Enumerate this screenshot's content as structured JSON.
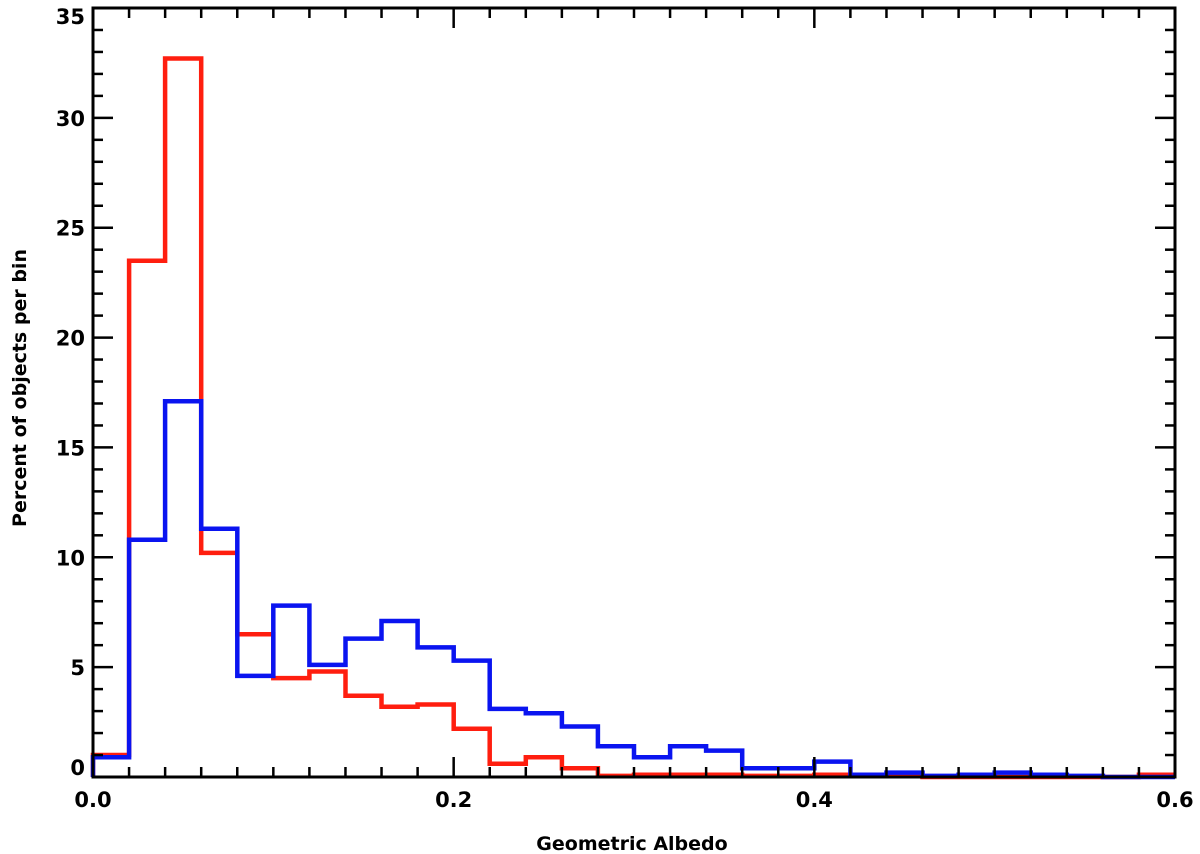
{
  "chart_data": {
    "type": "line",
    "subtype": "step-histogram",
    "xlabel": "Geometric Albedo",
    "ylabel": "Percent of objects per bin",
    "xlim": [
      0.0,
      0.6
    ],
    "ylim": [
      0,
      35
    ],
    "x_ticks": [
      "0.0",
      "0.2",
      "0.4",
      "0.6"
    ],
    "y_ticks": [
      "0",
      "5",
      "10",
      "15",
      "20",
      "25",
      "30",
      "35"
    ],
    "grid": false,
    "bin_edges": [
      0.0,
      0.02,
      0.04,
      0.06,
      0.08,
      0.1,
      0.12,
      0.14,
      0.16,
      0.18,
      0.2,
      0.22,
      0.24,
      0.26,
      0.28,
      0.3,
      0.32,
      0.34,
      0.36,
      0.38,
      0.4,
      0.42,
      0.44,
      0.46,
      0.48,
      0.5,
      0.52,
      0.54,
      0.56,
      0.58,
      0.6
    ],
    "series": [
      {
        "color": "#ff1e0f",
        "values": [
          1.0,
          23.5,
          32.7,
          10.2,
          6.5,
          4.5,
          4.8,
          3.7,
          3.2,
          3.3,
          2.2,
          0.6,
          0.9,
          0.4,
          0.05,
          0.1,
          0.1,
          0.1,
          0.05,
          0.05,
          0.1,
          0.05,
          0.05,
          0.0,
          0.0,
          0.0,
          0.0,
          0.0,
          0.0,
          0.1
        ]
      },
      {
        "color": "#0a14f0",
        "values": [
          0.9,
          10.8,
          17.1,
          11.3,
          4.6,
          7.8,
          5.1,
          6.3,
          7.1,
          5.9,
          5.3,
          3.1,
          2.9,
          2.3,
          1.4,
          0.9,
          1.4,
          1.2,
          0.4,
          0.4,
          0.7,
          0.1,
          0.2,
          0.05,
          0.1,
          0.2,
          0.1,
          0.05,
          0.0,
          0.0
        ]
      }
    ]
  }
}
